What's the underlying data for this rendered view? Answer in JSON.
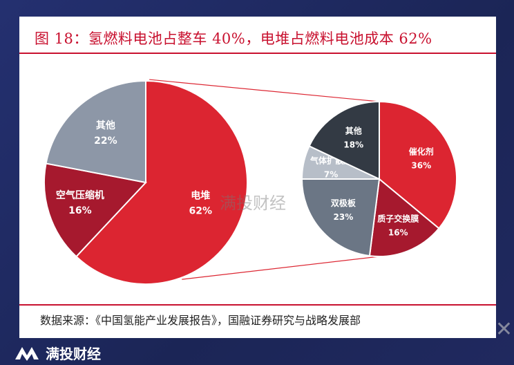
{
  "title": "图 18：氢燃料电池占整车 40%，电堆占燃料电池成本 62%",
  "source": "数据来源：《中国氢能产业发展报告》，国融证券研究与战略发展部",
  "watermark": "满投财经",
  "footer_brand": "满投财经",
  "colors": {
    "red": "#dc2531",
    "dark_red": "#a6192e",
    "gray": "#8d97a7",
    "slate": "#6b7685",
    "dark": "#333a44",
    "light_gray": "#b7bec8",
    "accent": "#c8102e"
  },
  "chart_data": [
    {
      "type": "pie",
      "slices": [
        {
          "label": "电堆",
          "value": 62,
          "display": "62%",
          "color": "#dc2531"
        },
        {
          "label": "空气压缩机",
          "value": 16,
          "display": "16%",
          "color": "#a6192e"
        },
        {
          "label": "其他",
          "value": 22,
          "display": "22%",
          "color": "#8d97a7"
        }
      ]
    },
    {
      "type": "pie",
      "slices": [
        {
          "label": "催化剂",
          "value": 36,
          "display": "36%",
          "color": "#dc2531"
        },
        {
          "label": "质子交换膜",
          "value": 16,
          "display": "16%",
          "color": "#a6192e"
        },
        {
          "label": "双极板",
          "value": 23,
          "display": "23%",
          "color": "#6b7685"
        },
        {
          "label": "气体扩散层",
          "value": 7,
          "display": "7%",
          "color": "#b7bec8"
        },
        {
          "label": "其他",
          "value": 18,
          "display": "18%",
          "color": "#333a44"
        }
      ]
    }
  ]
}
